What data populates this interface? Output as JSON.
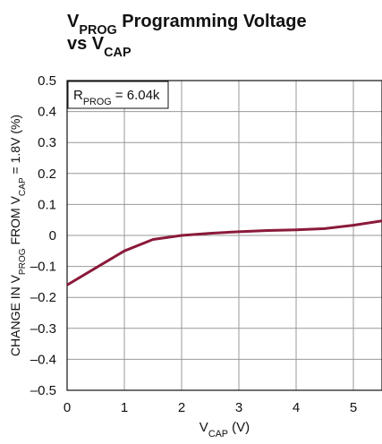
{
  "chart_data": {
    "type": "line",
    "title": [
      "V",
      "PROG",
      " Programming Voltage",
      "vs V",
      "CAP"
    ],
    "annotation": [
      "R",
      "PROG",
      " = 6.04k"
    ],
    "y_label": [
      "CHANGE IN V",
      "PROG",
      " FROM V",
      "CAP",
      " = 1.8V (%)"
    ],
    "x_label": [
      "V",
      "CAP",
      " (V)"
    ],
    "x": [
      0,
      0.5,
      1,
      1.5,
      2,
      2.5,
      3,
      3.5,
      4,
      4.5,
      5,
      5.5
    ],
    "series": [
      {
        "color": "#8b1a3a",
        "values": [
          -0.16,
          -0.105,
          -0.05,
          -0.013,
          0.0,
          0.007,
          0.012,
          0.016,
          0.018,
          0.022,
          0.033,
          0.047
        ]
      }
    ],
    "xlim": [
      0,
      5.5
    ],
    "xticks": [
      0,
      1,
      2,
      3,
      4,
      5
    ],
    "ylim": [
      -0.5,
      0.5
    ],
    "yticks": [
      {
        "value": -0.5,
        "label": "–0.5"
      },
      {
        "value": -0.4,
        "label": "–0.4"
      },
      {
        "value": -0.3,
        "label": "–0.3"
      },
      {
        "value": -0.2,
        "label": "–0.2"
      },
      {
        "value": -0.1,
        "label": "–0.1"
      },
      0,
      0.1,
      0.2,
      0.3,
      0.4,
      0.5
    ],
    "grid": true
  }
}
